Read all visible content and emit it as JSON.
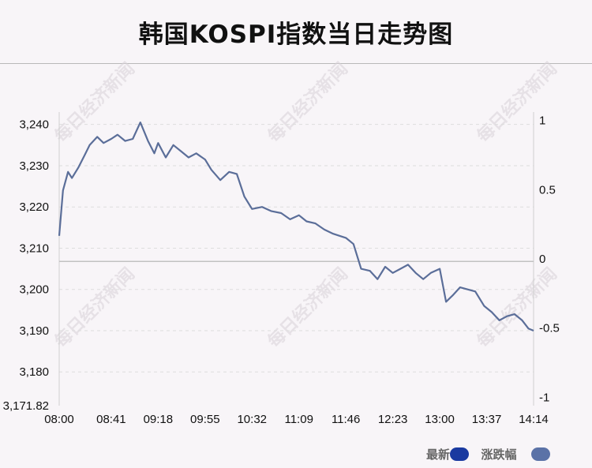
{
  "title": "韩国KOSPI指数当日走势图",
  "watermark": "每日经济新闻",
  "legend": [
    {
      "label": "最新",
      "color": "#1a3aa0"
    },
    {
      "label": "涨跌幅",
      "color": "#5b72a7"
    }
  ],
  "colors": {
    "line": "#5b6e99",
    "zero_line": "#c2c2c2",
    "grid": "#dddddd"
  },
  "chart_data": {
    "type": "line",
    "x_ticks": [
      "08:00",
      "08:41",
      "09:18",
      "09:55",
      "10:32",
      "11:09",
      "11:46",
      "12:23",
      "13:00",
      "13:37",
      "14:14"
    ],
    "y_left_ticks": [
      "3,240",
      "3,230",
      "3,220",
      "3,210",
      "3,200",
      "3,190",
      "3,180",
      "3,171.82"
    ],
    "y_right_ticks": [
      "1",
      "0.5",
      "0",
      "-0.5",
      "-1"
    ],
    "ylim_left": [
      3171.82,
      3243
    ],
    "ylim_right": [
      -1.06,
      1.06
    ],
    "zero_value": 3206.8,
    "grid": true,
    "legend_position": "bottom-right",
    "series": [
      {
        "name": "最新",
        "x": [
          "08:00",
          "08:03",
          "08:07",
          "08:10",
          "08:15",
          "08:20",
          "08:24",
          "08:30",
          "08:35",
          "08:41",
          "08:46",
          "08:52",
          "08:58",
          "09:04",
          "09:10",
          "09:15",
          "09:18",
          "09:24",
          "09:30",
          "09:36",
          "09:42",
          "09:48",
          "09:55",
          "10:00",
          "10:07",
          "10:14",
          "10:20",
          "10:26",
          "10:32",
          "10:40",
          "10:47",
          "10:55",
          "11:02",
          "11:09",
          "11:15",
          "11:22",
          "11:29",
          "11:36",
          "11:41",
          "11:46",
          "11:52",
          "11:58",
          "12:05",
          "12:11",
          "12:17",
          "12:23",
          "12:29",
          "12:35",
          "12:41",
          "12:47",
          "12:53",
          "13:00",
          "13:05",
          "13:10",
          "13:16",
          "13:22",
          "13:28",
          "13:35",
          "13:41",
          "13:47",
          "13:53",
          "13:59",
          "14:05",
          "14:10",
          "14:14"
        ],
        "values": [
          3213.0,
          3224.0,
          3228.5,
          3227.0,
          3229.5,
          3232.5,
          3235.0,
          3237.0,
          3235.5,
          3236.5,
          3237.5,
          3236.0,
          3236.5,
          3240.5,
          3236.0,
          3233.0,
          3235.5,
          3232.0,
          3235.0,
          3233.5,
          3232.0,
          3233.0,
          3231.5,
          3229.0,
          3226.5,
          3228.5,
          3228.0,
          3222.5,
          3219.5,
          3220.0,
          3219.0,
          3218.5,
          3217.0,
          3218.0,
          3216.5,
          3216.0,
          3214.5,
          3213.5,
          3213.0,
          3212.5,
          3211.0,
          3205.0,
          3204.5,
          3202.5,
          3205.5,
          3204.0,
          3205.0,
          3206.0,
          3204.0,
          3202.5,
          3204.0,
          3205.0,
          3197.0,
          3198.5,
          3200.5,
          3200.0,
          3199.5,
          3196.0,
          3194.5,
          3192.5,
          3193.5,
          3194.0,
          3192.5,
          3190.5,
          3190.0
        ]
      }
    ]
  }
}
